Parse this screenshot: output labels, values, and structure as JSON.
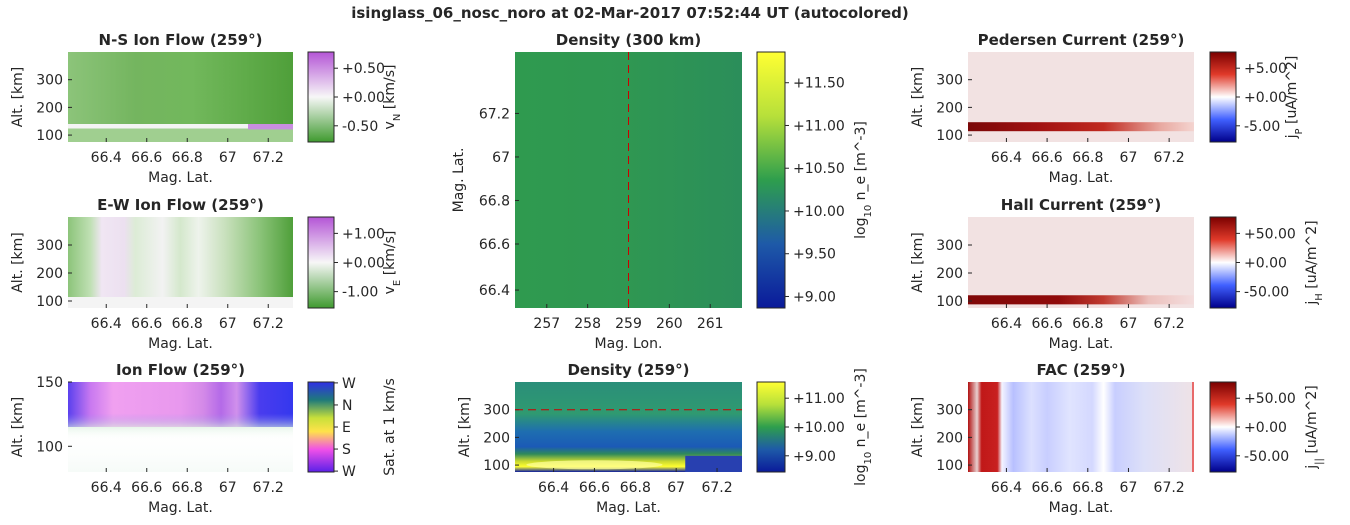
{
  "suptitle": "isinglass_06_nosc_noro at 02-Mar-2017 07:52:44 UT (autocolored)",
  "colors": {
    "text": "#262626",
    "axis": "#262626",
    "dash": "#cc0000"
  },
  "chart_data": [
    {
      "id": "ns-flow",
      "type": "heatmap",
      "title": "N-S Ion Flow (259°)",
      "xlabel": "Mag. Lat.",
      "ylabel": "Alt. [km]",
      "xticks": [
        "66.4",
        "66.6",
        "66.8",
        "67",
        "67.2"
      ],
      "yticks": [
        "100",
        "200",
        "300"
      ],
      "colorbar": {
        "ticks": [
          "+0.50",
          "+0.00",
          "-0.50"
        ],
        "label": "v",
        "sub": "N",
        "label_tail": " [km/s]",
        "colormap": "PRGn"
      }
    },
    {
      "id": "ew-flow",
      "type": "heatmap",
      "title": "E-W Ion Flow (259°)",
      "xlabel": "Mag. Lat.",
      "ylabel": "Alt. [km]",
      "xticks": [
        "66.4",
        "66.6",
        "66.8",
        "67",
        "67.2"
      ],
      "yticks": [
        "100",
        "200",
        "300"
      ],
      "colorbar": {
        "ticks": [
          "+1.00",
          "+0.00",
          "-1.00"
        ],
        "label": "v",
        "sub": "E",
        "label_tail": " [km/s]",
        "colormap": "PRGn"
      }
    },
    {
      "id": "ion-flow",
      "type": "heatmap",
      "title": "Ion Flow (259°)",
      "xlabel": "Mag. Lat.",
      "ylabel": "Alt. [km]",
      "xticks": [
        "66.4",
        "66.6",
        "66.8",
        "67",
        "67.2"
      ],
      "yticks": [
        "100",
        "150"
      ],
      "colorbar": {
        "ticks": [
          "W",
          "N",
          "E",
          "S",
          "W"
        ],
        "label": "Sat. at 1 km/s",
        "sub": "",
        "label_tail": "",
        "colormap": "hue-wheel"
      }
    },
    {
      "id": "density-300",
      "type": "heatmap",
      "title": "Density (300 km)",
      "xlabel": "Mag. Lon.",
      "ylabel": "Mag. Lat.",
      "xticks": [
        "257",
        "258",
        "259",
        "260",
        "261"
      ],
      "yticks": [
        "66.4",
        "66.6",
        "66.8",
        "67",
        "67.2"
      ],
      "dashed_line": {
        "axis": "x",
        "value": 259
      },
      "colorbar": {
        "ticks": [
          "+11.50",
          "+11.00",
          "+10.50",
          "+10.00",
          "+9.50",
          "+9.00"
        ],
        "label": "log",
        "sub": "10",
        "label_tail": " n_e [m^-3]",
        "colormap": "viridis-like"
      }
    },
    {
      "id": "density-259",
      "type": "heatmap",
      "title": "Density (259°)",
      "xlabel": "Mag. Lat.",
      "ylabel": "Alt. [km]",
      "xticks": [
        "66.4",
        "66.6",
        "66.8",
        "67",
        "67.2"
      ],
      "yticks": [
        "100",
        "200",
        "300"
      ],
      "dashed_line": {
        "axis": "y",
        "value": 300
      },
      "colorbar": {
        "ticks": [
          "+11.00",
          "+10.00",
          "+9.00"
        ],
        "label": "log",
        "sub": "10",
        "label_tail": " n_e [m^-3]",
        "colormap": "viridis-like"
      }
    },
    {
      "id": "pedersen",
      "type": "heatmap",
      "title": "Pedersen Current (259°)",
      "xlabel": "Mag. Lat.",
      "ylabel": "Alt. [km]",
      "xticks": [
        "66.4",
        "66.6",
        "66.8",
        "67",
        "67.2"
      ],
      "yticks": [
        "100",
        "200",
        "300"
      ],
      "colorbar": {
        "ticks": [
          "+5.00",
          "+0.00",
          "-5.00"
        ],
        "label": "j",
        "sub": "P",
        "label_tail": " [uA/m^2]",
        "colormap": "seismic"
      }
    },
    {
      "id": "hall",
      "type": "heatmap",
      "title": "Hall Current (259°)",
      "xlabel": "Mag. Lat.",
      "ylabel": "Alt. [km]",
      "xticks": [
        "66.4",
        "66.6",
        "66.8",
        "67",
        "67.2"
      ],
      "yticks": [
        "100",
        "200",
        "300"
      ],
      "colorbar": {
        "ticks": [
          "+50.00",
          "+0.00",
          "-50.00"
        ],
        "label": "j",
        "sub": "H",
        "label_tail": " [uA/m^2]",
        "colormap": "seismic"
      }
    },
    {
      "id": "fac",
      "type": "heatmap",
      "title": "FAC (259°)",
      "xlabel": "Mag. Lat.",
      "ylabel": "Alt. [km]",
      "xticks": [
        "66.4",
        "66.6",
        "66.8",
        "67",
        "67.2"
      ],
      "yticks": [
        "100",
        "200",
        "300"
      ],
      "colorbar": {
        "ticks": [
          "+50.00",
          "+0.00",
          "-50.00"
        ],
        "label": "j",
        "sub": "||",
        "label_tail": " [uA/m^2]",
        "colormap": "seismic"
      }
    }
  ]
}
